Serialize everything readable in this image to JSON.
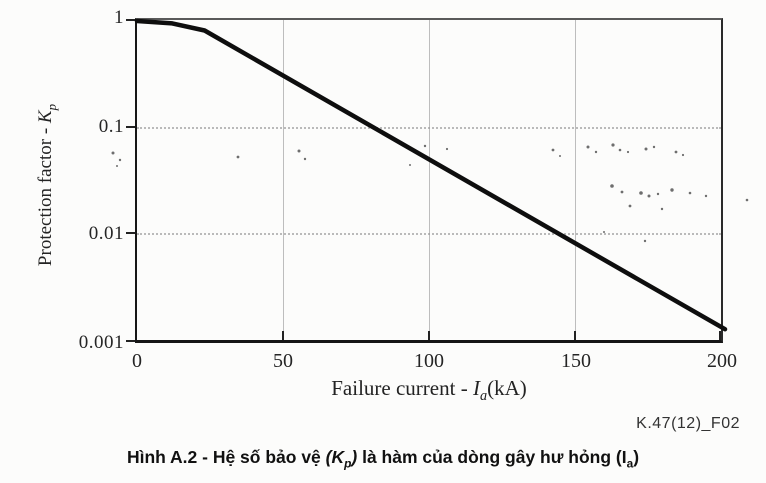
{
  "figure": {
    "note": "K.47(12)_F02",
    "caption": {
      "prefix": "Hình A.2 - Hệ số bảo vệ ",
      "k_open": "(K",
      "k_sub": "p",
      "k_close": ")",
      "middle": " là hàm của dòng gây hư hỏng ",
      "i_open": "(I",
      "i_sub": "a",
      "i_close": ")"
    }
  },
  "chart_data": {
    "type": "line",
    "title": "",
    "xlabel": "Failure current - Ia (kA)",
    "ylabel": "Protection factor - Kp",
    "x_scale": "linear",
    "y_scale": "log",
    "xlim": [
      0,
      200
    ],
    "ylim": [
      0.001,
      1
    ],
    "x_ticks": [
      "0",
      "50",
      "100",
      "150",
      "200"
    ],
    "y_ticks": [
      "1",
      "0.1",
      "0.01",
      "0.001"
    ],
    "grid": "dotted, at every decade and every 50 kA",
    "legend": "none",
    "labels": {
      "y_prefix": "Protection factor - ",
      "y_var": "K",
      "y_sub": "p",
      "x_prefix": "Failure current - ",
      "x_var": "I",
      "x_sub": "a",
      "x_unit": "(kA)"
    },
    "series": [
      {
        "name": "Kp vs Ia",
        "color": "#0e0e0e",
        "width": 4.5,
        "points": [
          [
            0,
            0.98
          ],
          [
            12,
            0.93
          ],
          [
            23,
            0.8
          ],
          [
            200,
            0.0014
          ]
        ]
      }
    ]
  }
}
